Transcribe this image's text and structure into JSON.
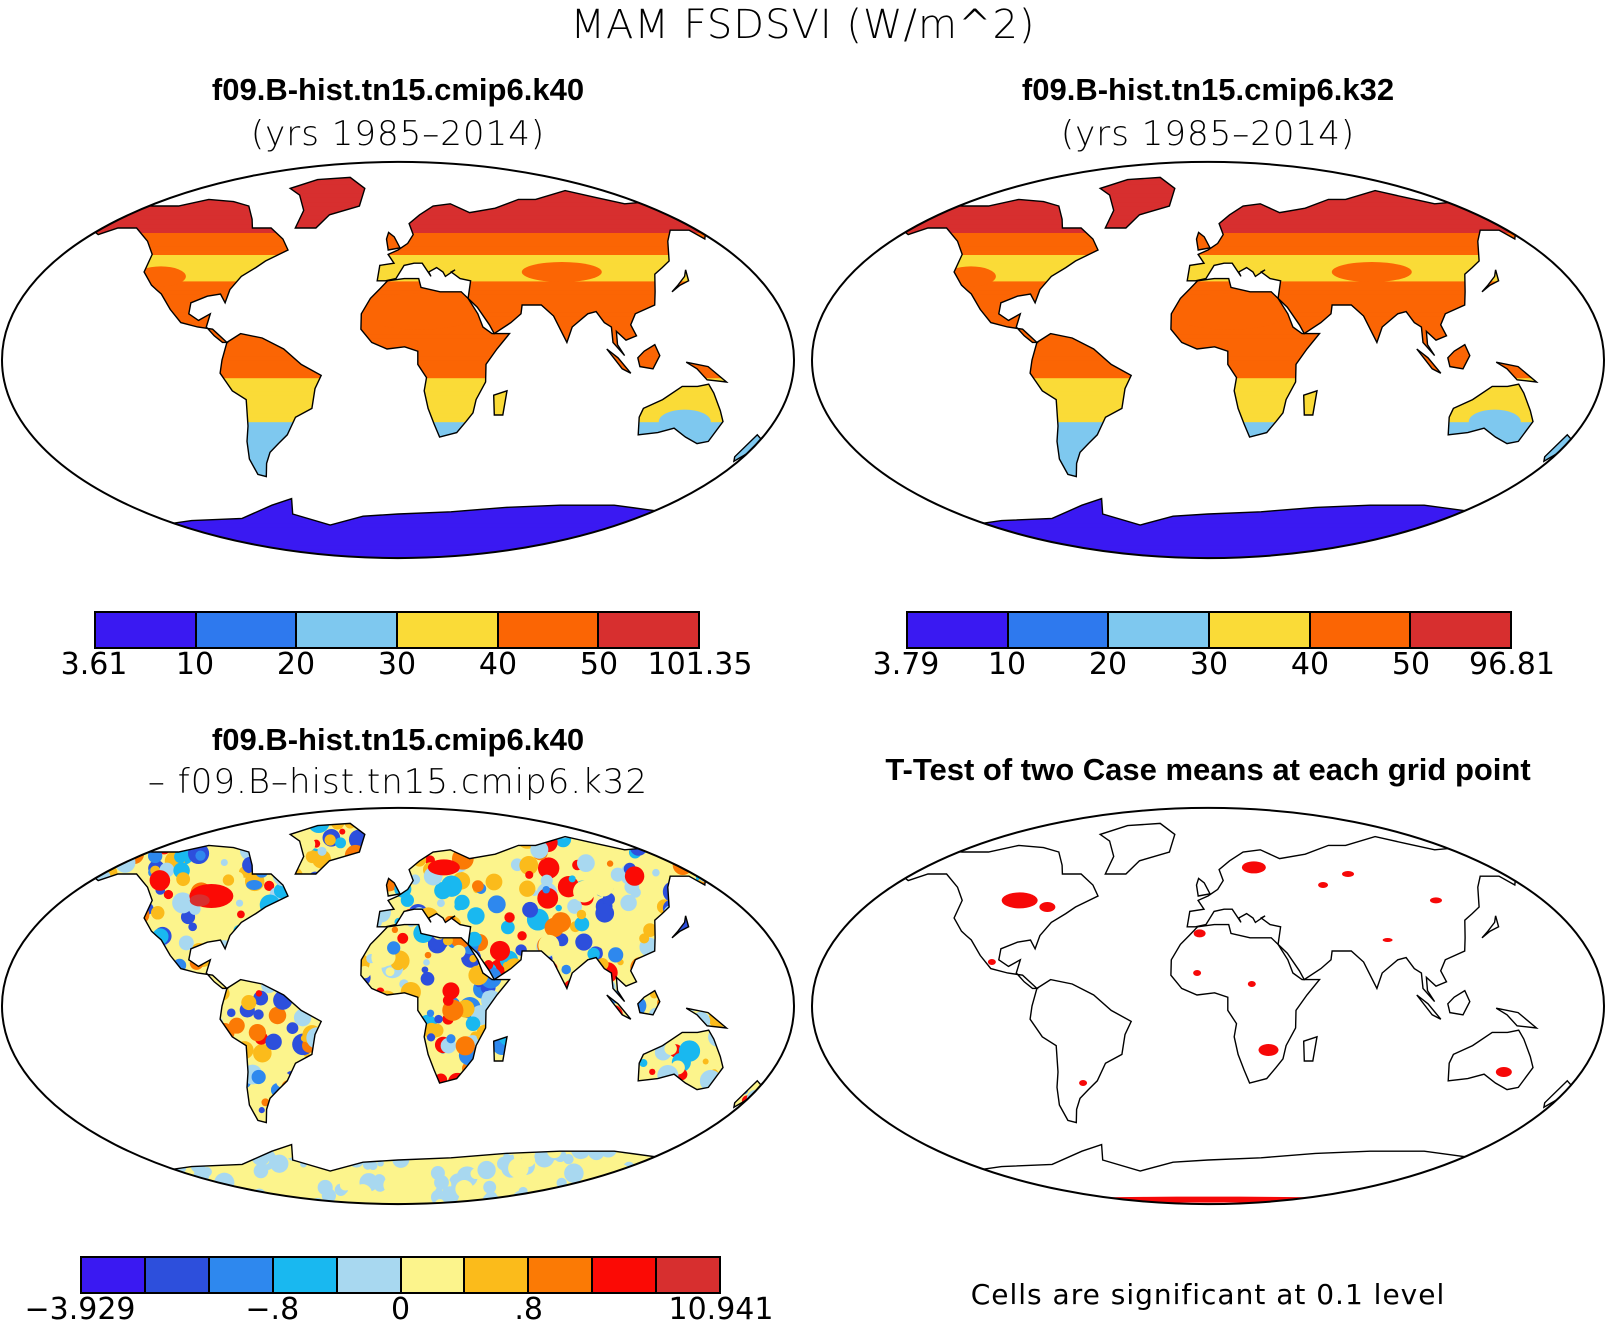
{
  "main_title": "MAM FSDSVI (W/m^2)",
  "panels": {
    "top_left": {
      "title": "f09.B-hist.tn15.cmip6.k40",
      "subtitle": "(yrs 1985–2014)",
      "colorbar": {
        "colors": [
          "#3a19f2",
          "#2e79ee",
          "#7ec8ef",
          "#fadb37",
          "#fb6504",
          "#d72f2f"
        ],
        "labels": [
          "3.61",
          "10",
          "20",
          "30",
          "40",
          "50",
          "101.35"
        ]
      }
    },
    "top_right": {
      "title": "f09.B-hist.tn15.cmip6.k32",
      "subtitle": "(yrs 1985–2014)",
      "colorbar": {
        "colors": [
          "#3a19f2",
          "#2e79ee",
          "#7ec8ef",
          "#fadb37",
          "#fb6504",
          "#d72f2f"
        ],
        "labels": [
          "3.79",
          "10",
          "20",
          "30",
          "40",
          "50",
          "96.81"
        ]
      }
    },
    "bottom_left": {
      "title": "f09.B-hist.tn15.cmip6.k40",
      "subtitle": "– f09.B–hist.tn15.cmip6.k32",
      "colorbar": {
        "colors": [
          "#3a19f2",
          "#2d4fdc",
          "#2e88ee",
          "#19b8f0",
          "#a8d8f0",
          "#fcf48c",
          "#fbbb1b",
          "#fb7a05",
          "#fb0a05",
          "#d72f2f"
        ],
        "labels": [
          "−3.929",
          "−.8",
          "0",
          ".8",
          "10.941"
        ],
        "label_index": [
          0,
          3,
          5,
          7,
          10
        ]
      }
    },
    "bottom_right": {
      "title": "T-Test of two Case means at each grid point",
      "note": "Cells are significant at 0.1 level",
      "significance_color": "#f60808"
    }
  }
}
